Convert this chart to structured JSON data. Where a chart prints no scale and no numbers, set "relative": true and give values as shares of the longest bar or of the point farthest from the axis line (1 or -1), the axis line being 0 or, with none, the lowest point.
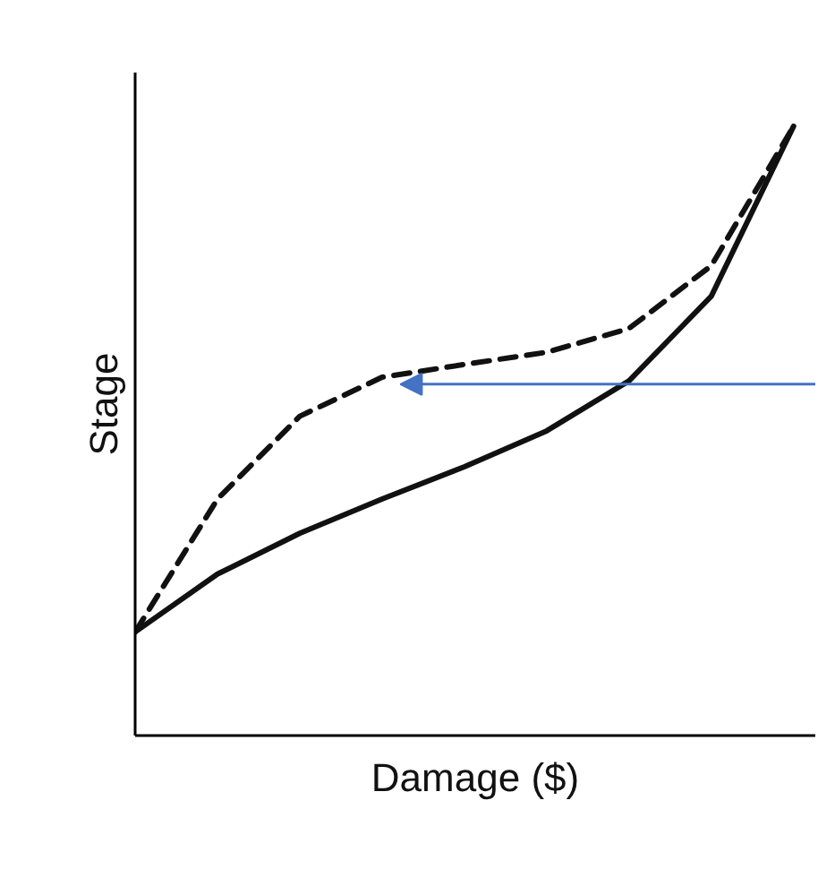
{
  "chart_data": {
    "type": "line",
    "relative": true,
    "xlabel": "Damage ($)",
    "ylabel": "Stage",
    "categories": [
      null,
      null,
      null,
      null,
      null,
      null,
      null,
      null,
      null
    ],
    "series": [
      {
        "color": "#111111",
        "line_style": "solid",
        "values": [
          0.17,
          0.265,
          0.332,
          0.388,
          0.441,
          0.5,
          0.582,
          0.721,
          1
        ]
      },
      {
        "color": "#111111",
        "line_style": "dashed",
        "values": [
          0.17,
          0.388,
          0.524,
          0.588,
          0.609,
          0.629,
          0.668,
          0.771,
          1
        ]
      }
    ],
    "grid": false,
    "marker": "none",
    "tick_labels": false
  }
}
